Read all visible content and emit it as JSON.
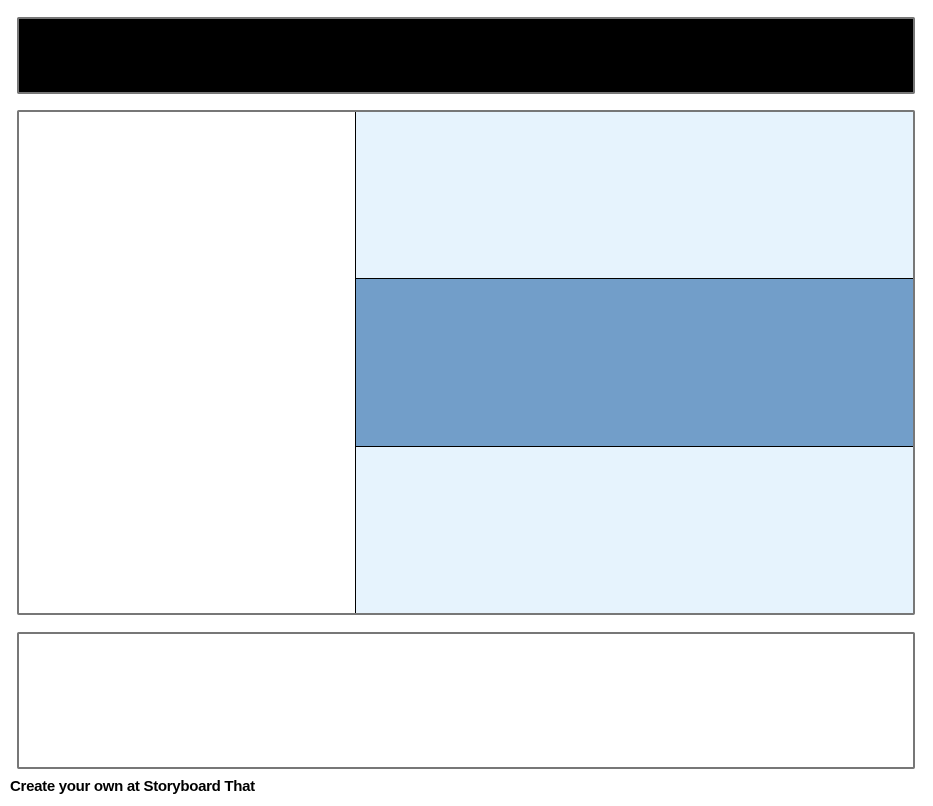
{
  "footer": {
    "text": "Create your own at Storyboard That"
  },
  "colors": {
    "header": "#000000",
    "light_row": "#e6f3fd",
    "highlight_row": "#729ec9",
    "border": "#777777"
  }
}
